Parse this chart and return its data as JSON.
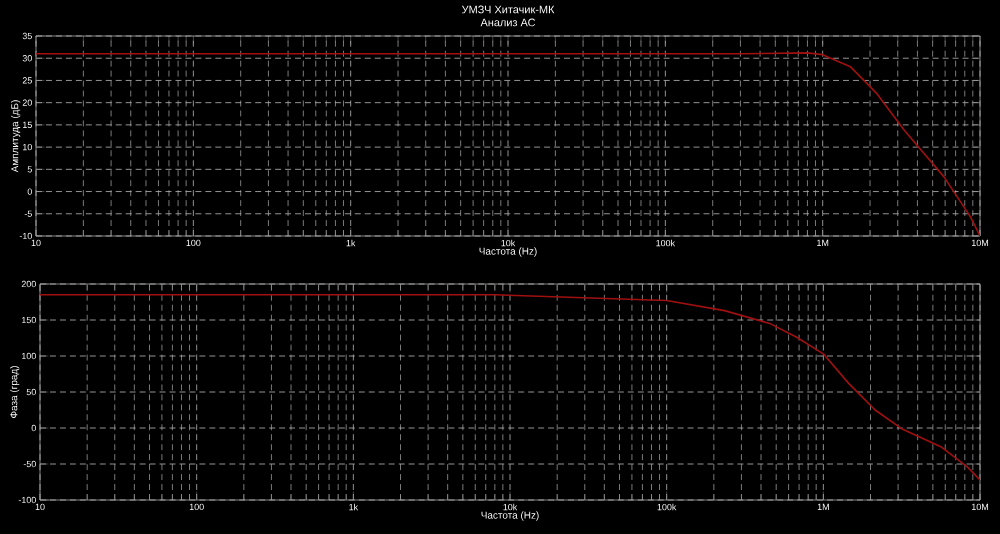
{
  "chart_data": [
    {
      "type": "line",
      "title": "УМЗЧ Хитачик-МК",
      "subtitle": "Анализ АС",
      "xlabel": "Частота (Hz)",
      "ylabel": "Амплитуда (дБ)",
      "log": "x",
      "grid": true,
      "marker": "none",
      "line_style": "solid",
      "xlim": [
        10,
        10000000
      ],
      "ylim": [
        -10,
        35
      ],
      "xticks": [
        {
          "value": 10,
          "label": "10"
        },
        {
          "value": 100,
          "label": "100"
        },
        {
          "value": 1000,
          "label": "1k"
        },
        {
          "value": 10000,
          "label": "10k"
        },
        {
          "value": 100000,
          "label": "100k"
        },
        {
          "value": 1000000,
          "label": "1M"
        },
        {
          "value": 10000000,
          "label": "10M"
        }
      ],
      "yticks": [
        -10,
        -5,
        0,
        5,
        10,
        15,
        20,
        25,
        30,
        35
      ],
      "series": [
        {
          "color": "#a01010",
          "x": [
            10,
            100,
            1000,
            10000,
            100000,
            300000,
            800000,
            1000000,
            1500000,
            2200000,
            3300000,
            5900000,
            8700000,
            10000000
          ],
          "values": [
            31,
            31,
            31,
            31,
            31,
            31,
            31.2,
            30.8,
            28.1,
            22.1,
            13.8,
            3.3,
            -5.7,
            -10
          ]
        }
      ]
    },
    {
      "type": "line",
      "xlabel": "Частота (Hz)",
      "ylabel": "Фаза (град)",
      "log": "x",
      "grid": true,
      "marker": "none",
      "line_style": "solid",
      "xlim": [
        10,
        10000000
      ],
      "ylim": [
        -100,
        200
      ],
      "xticks": [
        {
          "value": 10,
          "label": "10"
        },
        {
          "value": 100,
          "label": "100"
        },
        {
          "value": 1000,
          "label": "1k"
        },
        {
          "value": 10000,
          "label": "10k"
        },
        {
          "value": 100000,
          "label": "100k"
        },
        {
          "value": 1000000,
          "label": "1M"
        },
        {
          "value": 10000000,
          "label": "10M"
        }
      ],
      "yticks": [
        -100,
        -50,
        0,
        50,
        100,
        150,
        200
      ],
      "series": [
        {
          "color": "#a01010",
          "x": [
            10,
            100,
            1000,
            8000,
            100000,
            234000,
            457000,
            676000,
            1000000,
            1450000,
            2140000,
            3160000,
            5620000,
            8300000,
            10000000
          ],
          "values": [
            185,
            185,
            185,
            185,
            177,
            163,
            145,
            126,
            103,
            62,
            25,
            -1,
            -26,
            -54,
            -72
          ]
        }
      ]
    }
  ]
}
